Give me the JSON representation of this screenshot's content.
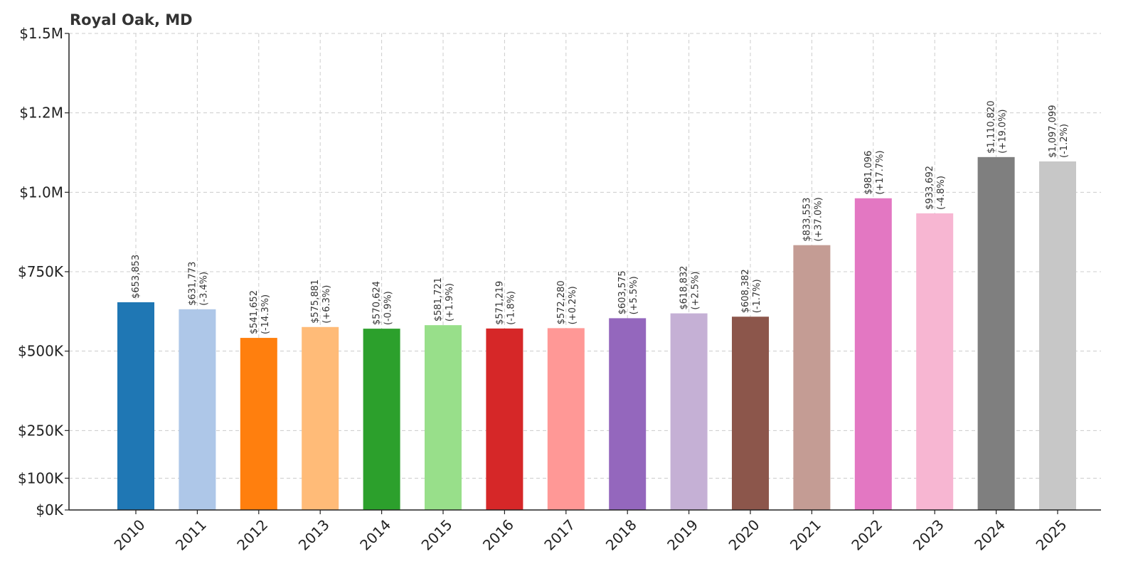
{
  "chart_data": {
    "type": "bar",
    "title": "Royal Oak, MD",
    "xlabel": "",
    "ylabel": "",
    "ylim": [
      0,
      1500000
    ],
    "grid": true,
    "yticks": [
      {
        "value": 0,
        "label": "$0K"
      },
      {
        "value": 100000,
        "label": "$100K"
      },
      {
        "value": 250000,
        "label": "$250K"
      },
      {
        "value": 500000,
        "label": "$500K"
      },
      {
        "value": 750000,
        "label": "$750K"
      },
      {
        "value": 1000000,
        "label": "$1.0M"
      },
      {
        "value": 1250000,
        "label": "$1.2M"
      },
      {
        "value": 1500000,
        "label": "$1.5M"
      }
    ],
    "categories": [
      "2010",
      "2011",
      "2012",
      "2013",
      "2014",
      "2015",
      "2016",
      "2017",
      "2018",
      "2019",
      "2020",
      "2021",
      "2022",
      "2023",
      "2024",
      "2025"
    ],
    "values": [
      653853,
      631773,
      541652,
      575881,
      570624,
      581721,
      571219,
      572280,
      603575,
      618832,
      608382,
      833553,
      981096,
      933692,
      1110820,
      1097099
    ],
    "value_labels": [
      "$653,853",
      "$631,773",
      "$541,652",
      "$575,881",
      "$570,624",
      "$581,721",
      "$571,219",
      "$572,280",
      "$603,575",
      "$618,832",
      "$608,382",
      "$833,553",
      "$981,096",
      "$933,692",
      "$1,110,820",
      "$1,097,099"
    ],
    "change_labels": [
      "",
      "(-3.4%)",
      "(-14.3%)",
      "(+6.3%)",
      "(-0.9%)",
      "(+1.9%)",
      "(-1.8%)",
      "(+0.2%)",
      "(+5.5%)",
      "(+2.5%)",
      "(-1.7%)",
      "(+37.0%)",
      "(+17.7%)",
      "(-4.8%)",
      "(+19.0%)",
      "(-1.2%)"
    ],
    "colors": [
      "#1f77b4",
      "#aec7e8",
      "#ff7f0e",
      "#ffbb78",
      "#2ca02c",
      "#98df8a",
      "#d62728",
      "#ff9896",
      "#9467bd",
      "#c5b0d5",
      "#8c564b",
      "#c49c94",
      "#e377c2",
      "#f7b6d2",
      "#7f7f7f",
      "#c7c7c7"
    ]
  }
}
